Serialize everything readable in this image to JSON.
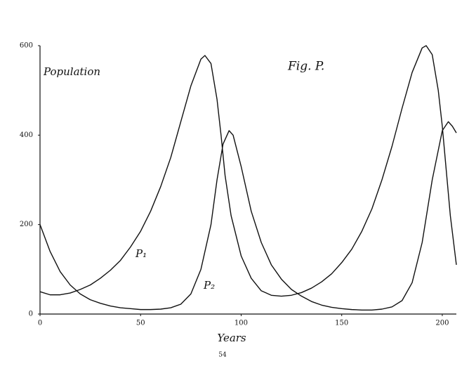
{
  "chart_data": {
    "type": "line",
    "title": "Fig. P.",
    "y_label": "Population",
    "x_label": "Years",
    "page_number": "54",
    "xlim": [
      0,
      207
    ],
    "ylim": [
      0,
      600
    ],
    "xticks": [
      0,
      50,
      100,
      150,
      200
    ],
    "yticks": [
      0,
      200,
      400,
      600
    ],
    "grid": false,
    "series": [
      {
        "name": "P₁",
        "color": "#111111",
        "x": [
          0,
          5,
          10,
          15,
          20,
          25,
          30,
          35,
          40,
          45,
          50,
          55,
          60,
          65,
          70,
          75,
          80,
          82,
          85,
          88,
          90,
          92,
          95,
          100,
          105,
          110,
          115,
          120,
          125,
          130,
          135,
          140,
          145,
          150,
          155,
          160,
          165,
          170,
          175,
          180,
          185,
          190,
          192,
          195,
          198,
          200,
          202,
          204,
          207
        ],
        "values": [
          50,
          43,
          43,
          47,
          55,
          65,
          80,
          98,
          120,
          150,
          185,
          230,
          285,
          350,
          430,
          510,
          570,
          578,
          560,
          480,
          400,
          310,
          220,
          130,
          80,
          52,
          42,
          40,
          42,
          48,
          58,
          72,
          90,
          115,
          145,
          185,
          235,
          300,
          375,
          460,
          540,
          595,
          600,
          580,
          500,
          420,
          320,
          220,
          110
        ]
      },
      {
        "name": "P₂",
        "color": "#111111",
        "x": [
          0,
          5,
          10,
          15,
          20,
          25,
          30,
          35,
          40,
          45,
          50,
          55,
          60,
          65,
          70,
          75,
          80,
          85,
          88,
          91,
          94,
          96,
          100,
          105,
          110,
          115,
          120,
          125,
          130,
          135,
          140,
          145,
          150,
          155,
          160,
          165,
          170,
          175,
          180,
          185,
          190,
          195,
          200,
          203,
          205,
          207
        ],
        "values": [
          200,
          140,
          95,
          65,
          45,
          32,
          24,
          18,
          14,
          12,
          10,
          10,
          11,
          14,
          22,
          45,
          100,
          200,
          300,
          380,
          410,
          400,
          330,
          230,
          160,
          110,
          78,
          55,
          40,
          28,
          20,
          15,
          12,
          10,
          9,
          9,
          11,
          16,
          30,
          70,
          160,
          300,
          410,
          430,
          420,
          405
        ]
      }
    ]
  }
}
